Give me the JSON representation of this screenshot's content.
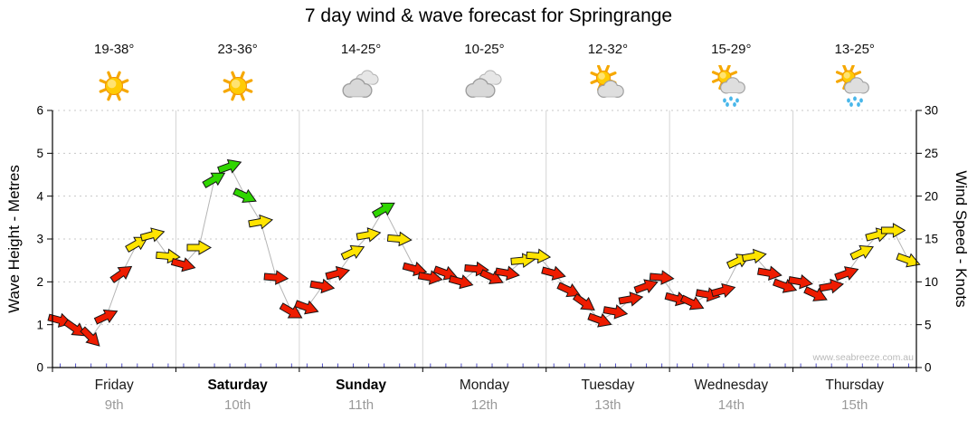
{
  "title": "7 day wind & wave forecast for Springrange",
  "watermark": "www.seabreeze.com.au",
  "chart_data": {
    "type": "wind-arrows",
    "title": "7 day wind & wave forecast for Springrange",
    "axes": {
      "left": {
        "label": "Wave Height - Metres",
        "min": 0,
        "max": 6,
        "ticks": [
          0,
          1,
          2,
          3,
          4,
          5,
          6
        ]
      },
      "right": {
        "label": "Wind Speed - Knots",
        "min": 0,
        "max": 30,
        "ticks": [
          0,
          5,
          10,
          15,
          20,
          25,
          30
        ]
      }
    },
    "arrow_colors": {
      "red": "#ee1c00",
      "yellow": "#ffe400",
      "green": "#2fd600"
    },
    "days": [
      {
        "name": "Friday",
        "date": "9th",
        "temp": "19-38°",
        "icon": "sunny",
        "bold": false,
        "points": [
          {
            "kn": 5.5,
            "color": "red",
            "rot": 15
          },
          {
            "kn": 4.5,
            "color": "red",
            "rot": 35
          },
          {
            "kn": 3.5,
            "color": "red",
            "rot": 45
          },
          {
            "kn": 6,
            "color": "red",
            "rot": -25
          },
          {
            "kn": 11,
            "color": "red",
            "rot": -35
          },
          {
            "kn": 14.5,
            "color": "yellow",
            "rot": -30
          },
          {
            "kn": 15.5,
            "color": "yellow",
            "rot": -15
          },
          {
            "kn": 13,
            "color": "yellow",
            "rot": 5
          }
        ]
      },
      {
        "name": "Saturday",
        "date": "10th",
        "temp": "23-36°",
        "icon": "sunny",
        "bold": true,
        "points": [
          {
            "kn": 12,
            "color": "red",
            "rot": 15
          },
          {
            "kn": 14,
            "color": "yellow",
            "rot": 0
          },
          {
            "kn": 22,
            "color": "green",
            "rot": -30
          },
          {
            "kn": 23.5,
            "color": "green",
            "rot": -20
          },
          {
            "kn": 20,
            "color": "green",
            "rot": 25
          },
          {
            "kn": 17,
            "color": "yellow",
            "rot": -10
          },
          {
            "kn": 10.5,
            "color": "red",
            "rot": 5
          },
          {
            "kn": 6.5,
            "color": "red",
            "rot": 30
          }
        ]
      },
      {
        "name": "Sunday",
        "date": "11th",
        "temp": "14-25°",
        "icon": "cloudy",
        "bold": true,
        "points": [
          {
            "kn": 7,
            "color": "red",
            "rot": 20
          },
          {
            "kn": 9.5,
            "color": "red",
            "rot": 10
          },
          {
            "kn": 11,
            "color": "red",
            "rot": -15
          },
          {
            "kn": 13.5,
            "color": "yellow",
            "rot": -25
          },
          {
            "kn": 15.5,
            "color": "yellow",
            "rot": -10
          },
          {
            "kn": 18.5,
            "color": "green",
            "rot": -30
          },
          {
            "kn": 15,
            "color": "yellow",
            "rot": 5
          },
          {
            "kn": 11.5,
            "color": "red",
            "rot": 15
          }
        ]
      },
      {
        "name": "Monday",
        "date": "12th",
        "temp": "10-25°",
        "icon": "cloudy",
        "bold": false,
        "points": [
          {
            "kn": 10.5,
            "color": "red",
            "rot": 10
          },
          {
            "kn": 11,
            "color": "red",
            "rot": 20
          },
          {
            "kn": 10,
            "color": "red",
            "rot": 15
          },
          {
            "kn": 11.5,
            "color": "red",
            "rot": 5
          },
          {
            "kn": 10.5,
            "color": "red",
            "rot": 25
          },
          {
            "kn": 11,
            "color": "red",
            "rot": 10
          },
          {
            "kn": 12.5,
            "color": "yellow",
            "rot": -5
          },
          {
            "kn": 13,
            "color": "yellow",
            "rot": 5
          }
        ]
      },
      {
        "name": "Tuesday",
        "date": "13th",
        "temp": "12-32°",
        "icon": "partly-cloudy",
        "bold": false,
        "points": [
          {
            "kn": 11,
            "color": "red",
            "rot": 15
          },
          {
            "kn": 9,
            "color": "red",
            "rot": 25
          },
          {
            "kn": 7.5,
            "color": "red",
            "rot": 35
          },
          {
            "kn": 5.5,
            "color": "red",
            "rot": 20
          },
          {
            "kn": 6.5,
            "color": "red",
            "rot": 10
          },
          {
            "kn": 8,
            "color": "red",
            "rot": -10
          },
          {
            "kn": 9.5,
            "color": "red",
            "rot": -20
          },
          {
            "kn": 10.5,
            "color": "red",
            "rot": 5
          }
        ]
      },
      {
        "name": "Wednesday",
        "date": "14th",
        "temp": "15-29°",
        "icon": "sun-showers",
        "bold": false,
        "points": [
          {
            "kn": 8,
            "color": "red",
            "rot": 15
          },
          {
            "kn": 7.5,
            "color": "red",
            "rot": 25
          },
          {
            "kn": 8.5,
            "color": "red",
            "rot": 10
          },
          {
            "kn": 9,
            "color": "red",
            "rot": -15
          },
          {
            "kn": 12.5,
            "color": "yellow",
            "rot": -25
          },
          {
            "kn": 13,
            "color": "yellow",
            "rot": -10
          },
          {
            "kn": 11,
            "color": "red",
            "rot": 10
          },
          {
            "kn": 9.5,
            "color": "red",
            "rot": 20
          }
        ]
      },
      {
        "name": "Thursday",
        "date": "15th",
        "temp": "13-25°",
        "icon": "sun-showers",
        "bold": false,
        "points": [
          {
            "kn": 10,
            "color": "red",
            "rot": 10
          },
          {
            "kn": 8.5,
            "color": "red",
            "rot": 25
          },
          {
            "kn": 9.5,
            "color": "red",
            "rot": -10
          },
          {
            "kn": 11,
            "color": "red",
            "rot": -20
          },
          {
            "kn": 13.5,
            "color": "yellow",
            "rot": -25
          },
          {
            "kn": 15.5,
            "color": "yellow",
            "rot": -15
          },
          {
            "kn": 16,
            "color": "yellow",
            "rot": 0
          },
          {
            "kn": 12.5,
            "color": "yellow",
            "rot": 20
          }
        ]
      }
    ]
  }
}
